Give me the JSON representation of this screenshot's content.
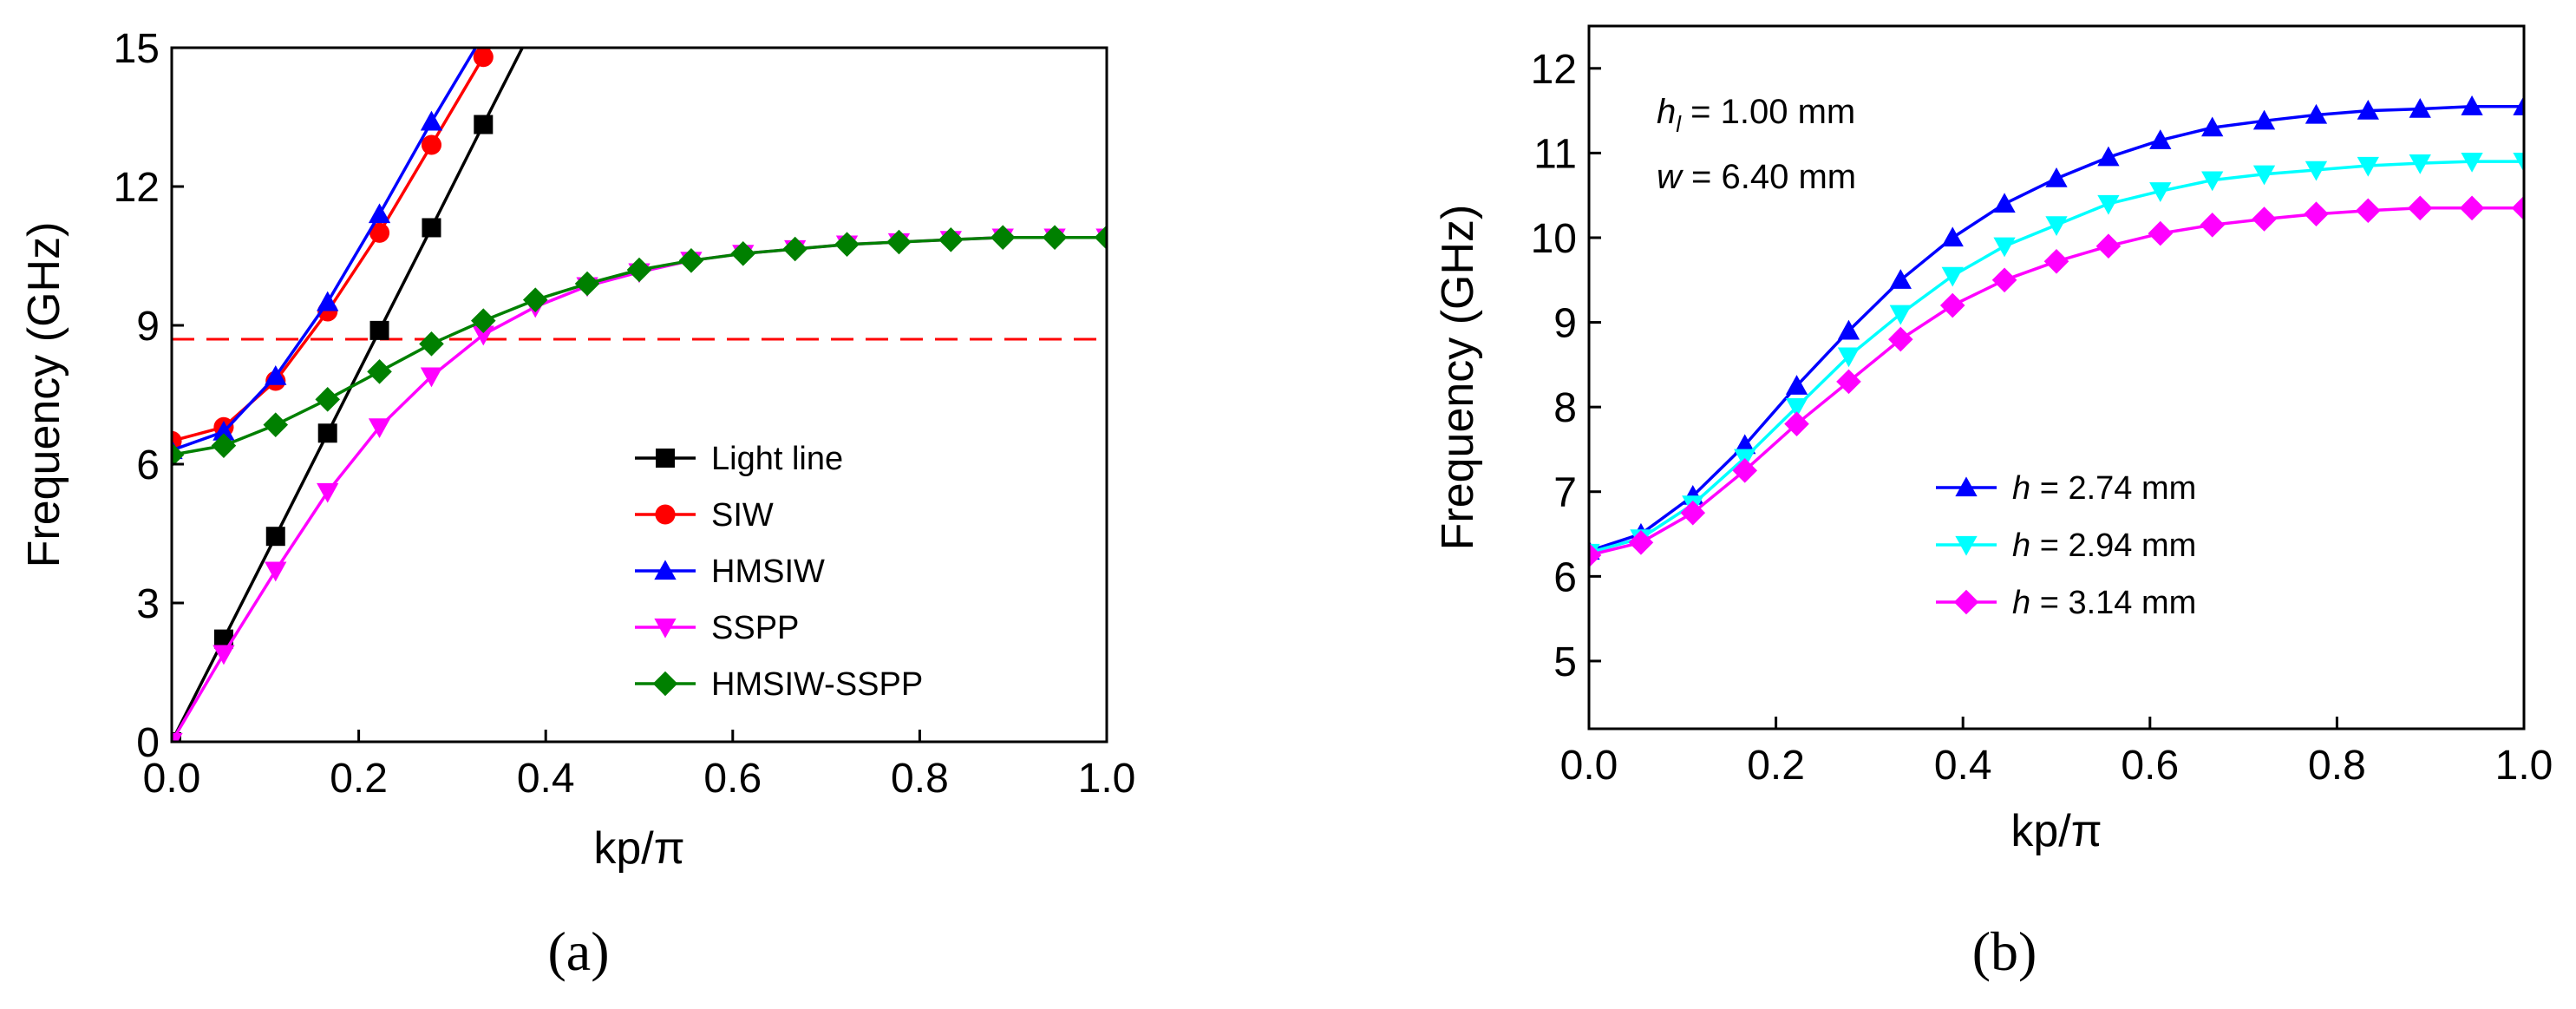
{
  "chart_data": [
    {
      "id": "a",
      "type": "line",
      "caption": "(a)",
      "xlabel": "kp/π",
      "ylabel": "Frequency (GHz)",
      "xlim": [
        0.0,
        1.0
      ],
      "ylim": [
        0,
        15
      ],
      "xticks": [
        "0.0",
        "0.2",
        "0.4",
        "0.6",
        "0.8",
        "1.0"
      ],
      "yticks": [
        "0",
        "3",
        "6",
        "9",
        "12",
        "15"
      ],
      "legend_position": "lower-right",
      "reference_line": {
        "y": 8.7,
        "color": "#ff0000",
        "style": "dashed"
      },
      "series": [
        {
          "name": "Light line",
          "color": "#000000",
          "marker": "square",
          "points": [
            [
              0.0,
              0.0
            ],
            [
              0.0556,
              2.22
            ],
            [
              0.1111,
              4.44
            ],
            [
              0.1667,
              6.67
            ],
            [
              0.2222,
              8.89
            ],
            [
              0.2778,
              11.11
            ],
            [
              0.3333,
              13.34
            ],
            [
              0.375,
              15.0
            ]
          ],
          "marker_points": [
            [
              0.0,
              0.0
            ],
            [
              0.0556,
              2.22
            ],
            [
              0.1111,
              4.44
            ],
            [
              0.1667,
              6.67
            ],
            [
              0.2222,
              8.89
            ],
            [
              0.2778,
              11.11
            ],
            [
              0.3333,
              13.34
            ]
          ]
        },
        {
          "name": "SIW",
          "color": "#ff0000",
          "marker": "circle",
          "points": [
            [
              0.0,
              6.5
            ],
            [
              0.0556,
              6.8
            ],
            [
              0.1111,
              7.8
            ],
            [
              0.1667,
              9.3
            ],
            [
              0.2222,
              11.0
            ],
            [
              0.2778,
              12.9
            ],
            [
              0.3333,
              14.8
            ],
            [
              0.34,
              15.0
            ]
          ],
          "marker_points": [
            [
              0.0,
              6.5
            ],
            [
              0.0556,
              6.8
            ],
            [
              0.1111,
              7.8
            ],
            [
              0.1667,
              9.3
            ],
            [
              0.2222,
              11.0
            ],
            [
              0.2778,
              12.9
            ],
            [
              0.3333,
              14.8
            ]
          ]
        },
        {
          "name": "HMSIW",
          "color": "#0000ff",
          "marker": "triangle-up",
          "points": [
            [
              0.0,
              6.3
            ],
            [
              0.0556,
              6.7
            ],
            [
              0.1111,
              7.9
            ],
            [
              0.1667,
              9.5
            ],
            [
              0.2222,
              11.4
            ],
            [
              0.2778,
              13.4
            ],
            [
              0.325,
              15.0
            ]
          ],
          "marker_points": [
            [
              0.0,
              6.3
            ],
            [
              0.0556,
              6.7
            ],
            [
              0.1111,
              7.9
            ],
            [
              0.1667,
              9.5
            ],
            [
              0.2222,
              11.4
            ],
            [
              0.2778,
              13.4
            ]
          ]
        },
        {
          "name": "SSPP",
          "color": "#ff00ff",
          "marker": "triangle-down",
          "points": [
            [
              0.0,
              0.0
            ],
            [
              0.0556,
              1.9
            ],
            [
              0.1111,
              3.7
            ],
            [
              0.1667,
              5.4
            ],
            [
              0.2222,
              6.8
            ],
            [
              0.2778,
              7.9
            ],
            [
              0.3333,
              8.8
            ],
            [
              0.3889,
              9.4
            ],
            [
              0.4444,
              9.85
            ],
            [
              0.5,
              10.15
            ],
            [
              0.5556,
              10.4
            ],
            [
              0.6111,
              10.55
            ],
            [
              0.6667,
              10.65
            ],
            [
              0.7222,
              10.75
            ],
            [
              0.7778,
              10.8
            ],
            [
              0.8333,
              10.85
            ],
            [
              0.8889,
              10.9
            ],
            [
              0.9444,
              10.9
            ],
            [
              1.0,
              10.9
            ]
          ],
          "marker_points": [
            [
              0.0,
              0.0
            ],
            [
              0.0556,
              1.9
            ],
            [
              0.1111,
              3.7
            ],
            [
              0.1667,
              5.4
            ],
            [
              0.2222,
              6.8
            ],
            [
              0.2778,
              7.9
            ],
            [
              0.3333,
              8.8
            ],
            [
              0.3889,
              9.4
            ],
            [
              0.4444,
              9.85
            ],
            [
              0.5,
              10.15
            ],
            [
              0.5556,
              10.4
            ],
            [
              0.6111,
              10.55
            ],
            [
              0.6667,
              10.65
            ],
            [
              0.7222,
              10.75
            ],
            [
              0.7778,
              10.8
            ],
            [
              0.8333,
              10.85
            ],
            [
              0.8889,
              10.9
            ],
            [
              0.9444,
              10.9
            ],
            [
              1.0,
              10.9
            ]
          ]
        },
        {
          "name": "HMSIW-SSPP",
          "color": "#008000",
          "marker": "diamond",
          "points": [
            [
              0.0,
              6.2
            ],
            [
              0.0556,
              6.4
            ],
            [
              0.1111,
              6.85
            ],
            [
              0.1667,
              7.4
            ],
            [
              0.2222,
              8.0
            ],
            [
              0.2778,
              8.6
            ],
            [
              0.3333,
              9.1
            ],
            [
              0.3889,
              9.55
            ],
            [
              0.4444,
              9.9
            ],
            [
              0.5,
              10.2
            ],
            [
              0.5556,
              10.4
            ],
            [
              0.6111,
              10.55
            ],
            [
              0.6667,
              10.65
            ],
            [
              0.7222,
              10.75
            ],
            [
              0.7778,
              10.8
            ],
            [
              0.8333,
              10.85
            ],
            [
              0.8889,
              10.9
            ],
            [
              0.9444,
              10.9
            ],
            [
              1.0,
              10.9
            ]
          ],
          "marker_points": [
            [
              0.0,
              6.2
            ],
            [
              0.0556,
              6.4
            ],
            [
              0.1111,
              6.85
            ],
            [
              0.1667,
              7.4
            ],
            [
              0.2222,
              8.0
            ],
            [
              0.2778,
              8.6
            ],
            [
              0.3333,
              9.1
            ],
            [
              0.3889,
              9.55
            ],
            [
              0.4444,
              9.9
            ],
            [
              0.5,
              10.2
            ],
            [
              0.5556,
              10.4
            ],
            [
              0.6111,
              10.55
            ],
            [
              0.6667,
              10.65
            ],
            [
              0.7222,
              10.75
            ],
            [
              0.7778,
              10.8
            ],
            [
              0.8333,
              10.85
            ],
            [
              0.8889,
              10.9
            ],
            [
              0.9444,
              10.9
            ],
            [
              1.0,
              10.9
            ]
          ]
        }
      ]
    },
    {
      "id": "b",
      "type": "line",
      "caption": "(b)",
      "xlabel": "kp/π",
      "ylabel": "Frequency (GHz)",
      "xlim": [
        0.0,
        1.0
      ],
      "ylim": [
        4.2,
        12.5
      ],
      "xticks": [
        "0.0",
        "0.2",
        "0.4",
        "0.6",
        "0.8",
        "1.0"
      ],
      "yticks": [
        "5",
        "6",
        "7",
        "8",
        "9",
        "10",
        "11",
        "12"
      ],
      "legend_position": "lower-center",
      "annotations": [
        {
          "symbol": "h",
          "subscript": "l",
          "text": " = 1.00 mm"
        },
        {
          "symbol": "w",
          "subscript": "",
          "text": " = 6.40 mm"
        }
      ],
      "series": [
        {
          "name": "h = 2.74 mm",
          "symbol": "h",
          "value_text": " = 2.74 mm",
          "color": "#0000ff",
          "marker": "triangle-up",
          "points": [
            [
              0.0,
              6.3
            ],
            [
              0.0556,
              6.5
            ],
            [
              0.1111,
              6.95
            ],
            [
              0.1667,
              7.55
            ],
            [
              0.2222,
              8.25
            ],
            [
              0.2778,
              8.9
            ],
            [
              0.3333,
              9.5
            ],
            [
              0.3889,
              10.0
            ],
            [
              0.4444,
              10.4
            ],
            [
              0.5,
              10.7
            ],
            [
              0.5556,
              10.95
            ],
            [
              0.6111,
              11.15
            ],
            [
              0.6667,
              11.3
            ],
            [
              0.7222,
              11.38
            ],
            [
              0.7778,
              11.45
            ],
            [
              0.8333,
              11.5
            ],
            [
              0.8889,
              11.52
            ],
            [
              0.9444,
              11.55
            ],
            [
              1.0,
              11.55
            ]
          ]
        },
        {
          "name": "h = 2.94 mm",
          "symbol": "h",
          "value_text": " = 2.94 mm",
          "color": "#00ffff",
          "marker": "triangle-down",
          "points": [
            [
              0.0,
              6.28
            ],
            [
              0.0556,
              6.45
            ],
            [
              0.1111,
              6.85
            ],
            [
              0.1667,
              7.4
            ],
            [
              0.2222,
              8.0
            ],
            [
              0.2778,
              8.6
            ],
            [
              0.3333,
              9.1
            ],
            [
              0.3889,
              9.55
            ],
            [
              0.4444,
              9.9
            ],
            [
              0.5,
              10.15
            ],
            [
              0.5556,
              10.4
            ],
            [
              0.6111,
              10.55
            ],
            [
              0.6667,
              10.68
            ],
            [
              0.7222,
              10.75
            ],
            [
              0.7778,
              10.8
            ],
            [
              0.8333,
              10.85
            ],
            [
              0.8889,
              10.88
            ],
            [
              0.9444,
              10.9
            ],
            [
              1.0,
              10.9
            ]
          ]
        },
        {
          "name": "h = 3.14 mm",
          "symbol": "h",
          "value_text": " = 3.14 mm",
          "color": "#ff00ff",
          "marker": "diamond",
          "points": [
            [
              0.0,
              6.25
            ],
            [
              0.0556,
              6.4
            ],
            [
              0.1111,
              6.75
            ],
            [
              0.1667,
              7.25
            ],
            [
              0.2222,
              7.8
            ],
            [
              0.2778,
              8.3
            ],
            [
              0.3333,
              8.8
            ],
            [
              0.3889,
              9.2
            ],
            [
              0.4444,
              9.5
            ],
            [
              0.5,
              9.72
            ],
            [
              0.5556,
              9.9
            ],
            [
              0.6111,
              10.05
            ],
            [
              0.6667,
              10.15
            ],
            [
              0.7222,
              10.22
            ],
            [
              0.7778,
              10.28
            ],
            [
              0.8333,
              10.32
            ],
            [
              0.8889,
              10.35
            ],
            [
              0.9444,
              10.35
            ],
            [
              1.0,
              10.35
            ]
          ]
        }
      ]
    }
  ]
}
